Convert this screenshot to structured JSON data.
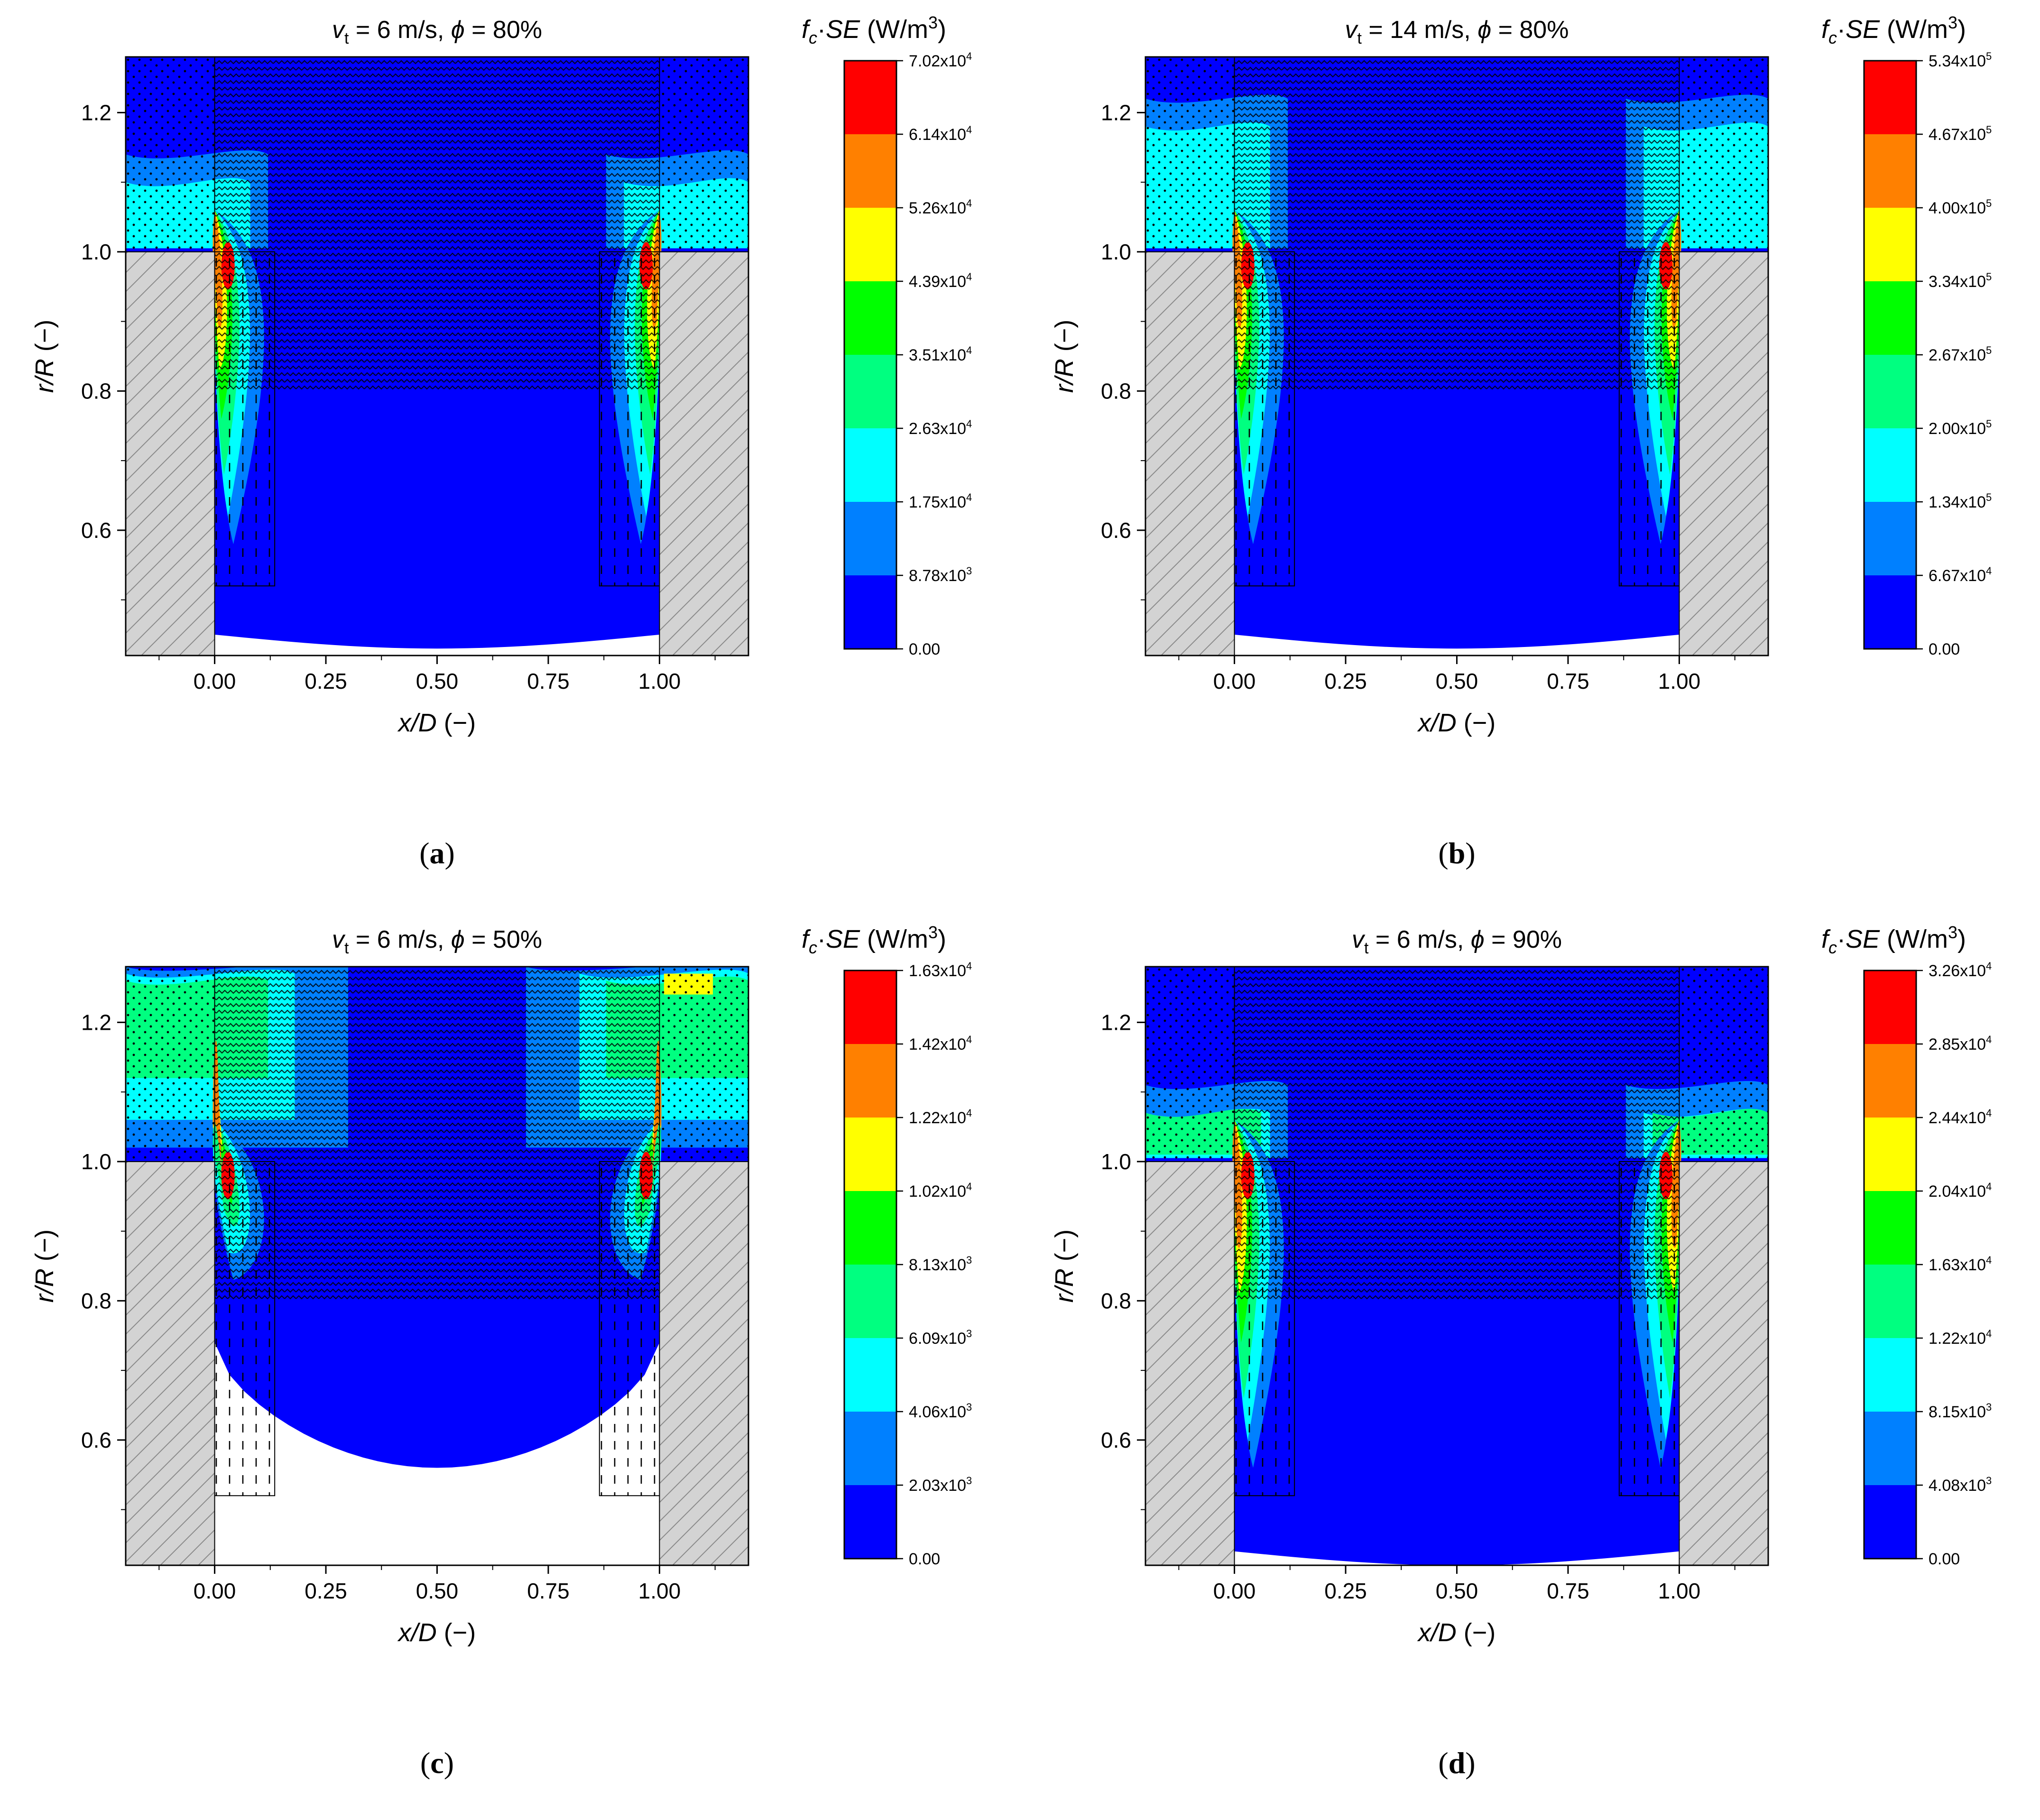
{
  "chart_data": [
    {
      "panel_label": "a",
      "type": "heatmap",
      "title_parts": {
        "sym": "v",
        "sub": "t",
        "rest": " = 6 m/s, ",
        "phi": "ϕ",
        "eq": " = 80%"
      },
      "xlabel": "x/D (−)",
      "ylabel": "r/R (−)",
      "xlim": [
        -0.2,
        1.2
      ],
      "ylim": [
        0.42,
        1.28
      ],
      "xticks": [
        "0.00",
        "0.25",
        "0.50",
        "0.75",
        "1.00"
      ],
      "yticks": [
        "0.6",
        "0.8",
        "1.0",
        "1.2"
      ],
      "colorbar_title": "fc·SE (W/m³)",
      "colorbar_levels": [
        "0.00",
        "8.78x10³",
        "1.75x10⁴",
        "2.63x10⁴",
        "3.51x10⁴",
        "4.39x10⁴",
        "5.26x10⁴",
        "6.14x10⁴",
        "7.02x10⁴"
      ],
      "colorbar_values": [
        0,
        8780,
        17500,
        26300,
        35100,
        43900,
        52600,
        61400,
        70200
      ],
      "colors": [
        "#0000ff",
        "#0080ff",
        "#00ffff",
        "#00ff80",
        "#00ff00",
        "#ffff00",
        "#ff8000",
        "#ff0000"
      ],
      "phi_percent": 80,
      "vt_mps": 6,
      "upper_band_top": 1.14,
      "lower_fill_min": 0.43
    },
    {
      "panel_label": "b",
      "type": "heatmap",
      "title_parts": {
        "sym": "v",
        "sub": "t",
        "rest": " = 14 m/s, ",
        "phi": "ϕ",
        "eq": " = 80%"
      },
      "xlabel": "x/D (−)",
      "ylabel": "r/R (−)",
      "xlim": [
        -0.2,
        1.2
      ],
      "ylim": [
        0.42,
        1.28
      ],
      "xticks": [
        "0.00",
        "0.25",
        "0.50",
        "0.75",
        "1.00"
      ],
      "yticks": [
        "0.6",
        "0.8",
        "1.0",
        "1.2"
      ],
      "colorbar_title": "fc·SE (W/m³)",
      "colorbar_levels": [
        "0.00",
        "6.67x10⁴",
        "1.34x10⁵",
        "2.00x10⁵",
        "2.67x10⁵",
        "3.34x10⁵",
        "4.00x10⁵",
        "4.67x10⁵",
        "5.34x10⁵"
      ],
      "colorbar_values": [
        0,
        66700,
        134000,
        200000,
        267000,
        334000,
        400000,
        467000,
        534000
      ],
      "colors": [
        "#0000ff",
        "#0080ff",
        "#00ffff",
        "#00ff80",
        "#00ff00",
        "#ffff00",
        "#ff8000",
        "#ff0000"
      ],
      "phi_percent": 80,
      "vt_mps": 14,
      "upper_band_top": 1.22,
      "lower_fill_min": 0.43
    },
    {
      "panel_label": "c",
      "type": "heatmap",
      "title_parts": {
        "sym": "v",
        "sub": "t",
        "rest": " = 6 m/s, ",
        "phi": "ϕ",
        "eq": " = 50%"
      },
      "xlabel": "x/D (−)",
      "ylabel": "r/R (−)",
      "xlim": [
        -0.2,
        1.2
      ],
      "ylim": [
        0.42,
        1.28
      ],
      "xticks": [
        "0.00",
        "0.25",
        "0.50",
        "0.75",
        "1.00"
      ],
      "yticks": [
        "0.6",
        "0.8",
        "1.0",
        "1.2"
      ],
      "colorbar_title": "fc·SE (W/m³)",
      "colorbar_levels": [
        "0.00",
        "2.03x10³",
        "4.06x10³",
        "6.09x10³",
        "8.13x10³",
        "1.02x10⁴",
        "1.22x10⁴",
        "1.42x10⁴",
        "1.63x10⁴"
      ],
      "colorbar_values": [
        0,
        2030,
        4060,
        6090,
        8130,
        10200,
        12200,
        14200,
        16300
      ],
      "colors": [
        "#0000ff",
        "#0080ff",
        "#00ffff",
        "#00ff80",
        "#00ff00",
        "#ffff00",
        "#ff8000",
        "#ff0000"
      ],
      "phi_percent": 50,
      "vt_mps": 6,
      "upper_band_top": 1.28,
      "lower_fill_min": 0.56
    },
    {
      "panel_label": "d",
      "type": "heatmap",
      "title_parts": {
        "sym": "v",
        "sub": "t",
        "rest": " = 6 m/s, ",
        "phi": "ϕ",
        "eq": " = 90%"
      },
      "xlabel": "x/D (−)",
      "ylabel": "r/R (−)",
      "xlim": [
        -0.2,
        1.2
      ],
      "ylim": [
        0.42,
        1.28
      ],
      "xticks": [
        "0.00",
        "0.25",
        "0.50",
        "0.75",
        "1.00"
      ],
      "yticks": [
        "0.6",
        "0.8",
        "1.0",
        "1.2"
      ],
      "colorbar_title": "fc·SE (W/m³)",
      "colorbar_levels": [
        "0.00",
        "4.08x10³",
        "8.15x10³",
        "1.22x10⁴",
        "1.63x10⁴",
        "2.04x10⁴",
        "2.44x10⁴",
        "2.85x10⁴",
        "3.26x10⁴"
      ],
      "colorbar_values": [
        0,
        4080,
        8150,
        12200,
        16300,
        20400,
        24400,
        28500,
        32600
      ],
      "colors": [
        "#0000ff",
        "#0080ff",
        "#00ffff",
        "#00ff80",
        "#00ff00",
        "#ffff00",
        "#ff8000",
        "#ff0000"
      ],
      "phi_percent": 90,
      "vt_mps": 6,
      "upper_band_top": 1.11,
      "lower_fill_min": 0.42
    }
  ]
}
